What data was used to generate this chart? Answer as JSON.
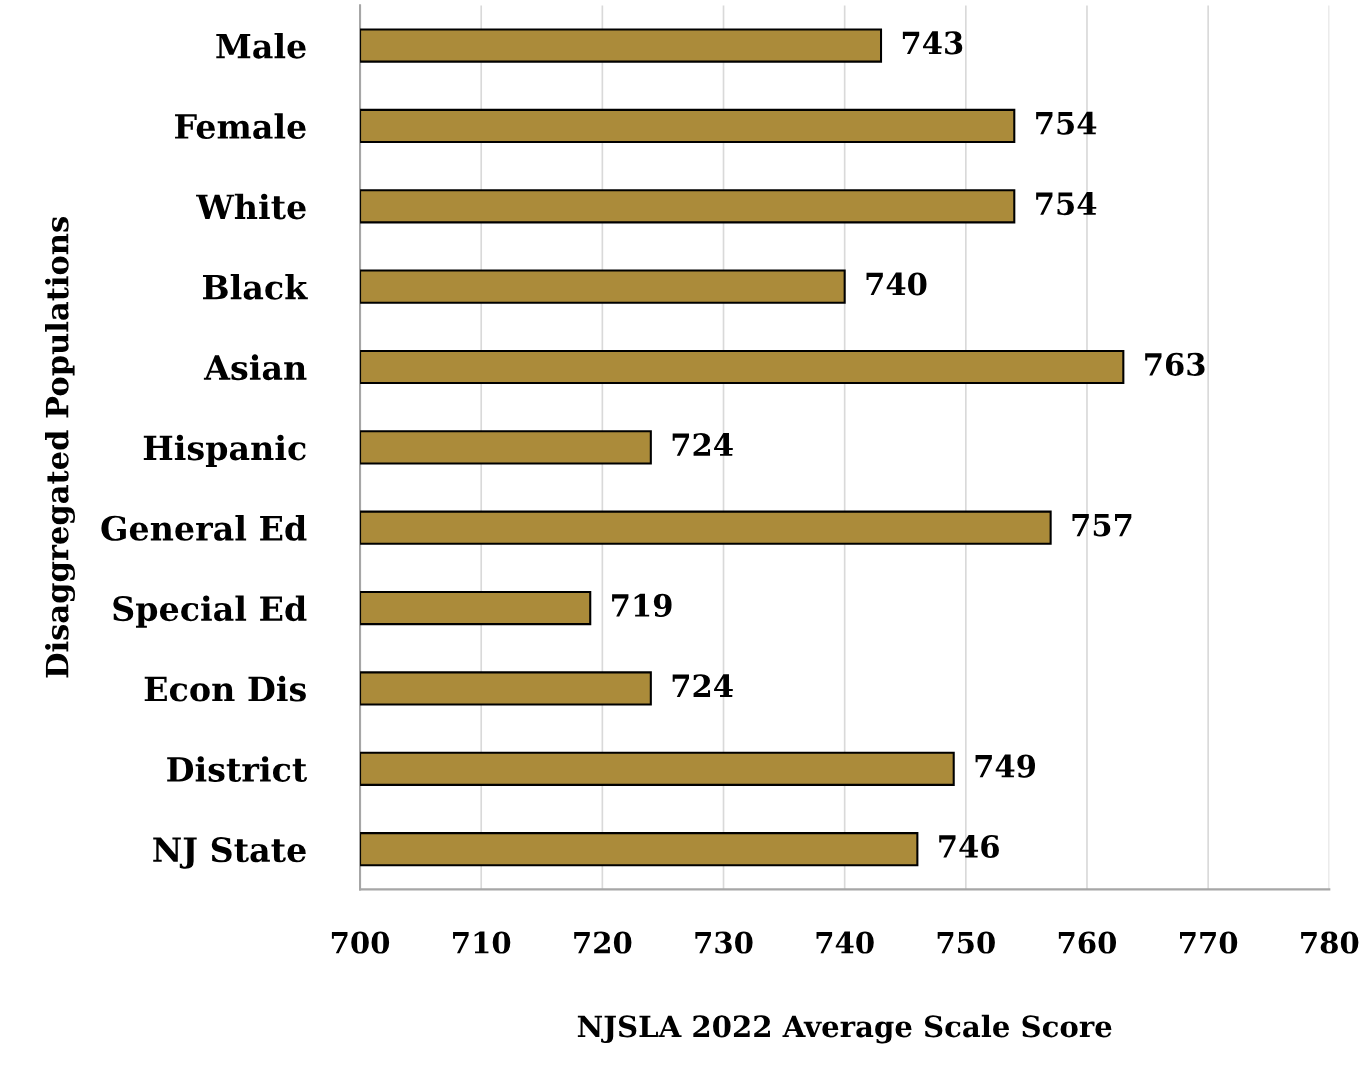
{
  "chart_data": {
    "type": "bar",
    "orientation": "horizontal",
    "xlabel": "NJSLA 2022 Average Scale Score",
    "ylabel": "Disaggregated Populations",
    "categories": [
      "Male",
      "Female",
      "White",
      "Black",
      "Asian",
      "Hispanic",
      "General Ed",
      "Special Ed",
      "Econ Dis",
      "District",
      "NJ State"
    ],
    "values": [
      743,
      754,
      754,
      740,
      763,
      724,
      757,
      719,
      724,
      749,
      746
    ],
    "color": "#ab8b3a",
    "xlim": [
      700,
      780
    ],
    "xticks": [
      700,
      710,
      720,
      730,
      740,
      750,
      760,
      770,
      780
    ],
    "grid": "x",
    "data_labels": true,
    "legend": false
  }
}
